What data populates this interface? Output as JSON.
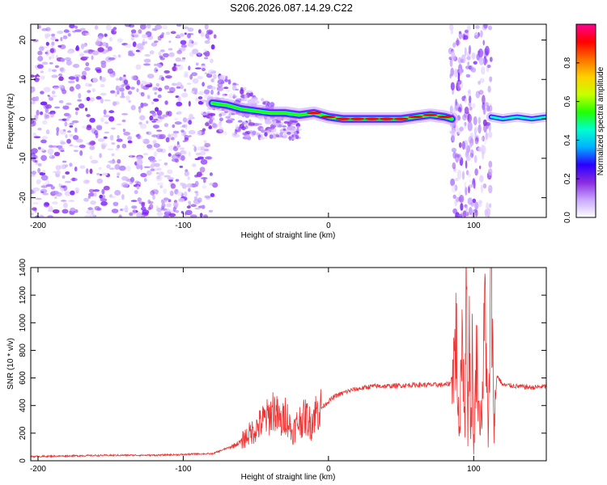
{
  "title": "S206.2026.087.14.29.C22",
  "chart_data": [
    {
      "type": "heatmap",
      "xlabel": "Height of straight line (km)",
      "ylabel": "Frequency (Hz)",
      "xlim": [
        -205,
        150
      ],
      "ylim": [
        -25,
        24
      ],
      "xticks": [
        -200,
        -100,
        0,
        100
      ],
      "yticks": [
        -20,
        -10,
        0,
        10,
        20
      ],
      "colorbar": {
        "label": "Normalized spectral amplitude",
        "range": [
          0,
          1
        ],
        "ticks": [
          "0.0",
          "0.2",
          "0.4",
          "0.6",
          "0.8"
        ],
        "colors": [
          "#ffffff",
          "#c9a8ff",
          "#8a2be2",
          "#2a00ff",
          "#00b0ff",
          "#00ffd0",
          "#22ff00",
          "#c8ff00",
          "#ffd000",
          "#ff7000",
          "#ff0000",
          "#ff0090"
        ]
      },
      "ridge": {
        "x": [
          -80,
          -70,
          -60,
          -50,
          -40,
          -30,
          -20,
          -10,
          0,
          10,
          20,
          30,
          40,
          50,
          60,
          70,
          80,
          85
        ],
        "frequency": [
          4,
          3.5,
          2.5,
          2,
          1.5,
          1.5,
          1,
          1.5,
          0.5,
          0,
          0,
          0,
          0,
          0,
          0.5,
          1,
          0.5,
          0
        ]
      }
    },
    {
      "type": "line",
      "xlabel": "Height of straight line (km)",
      "ylabel": "SNR (10 * v/v)",
      "xlim": [
        -205,
        150
      ],
      "ylim": [
        0,
        1400
      ],
      "xticks": [
        -200,
        -100,
        0,
        100
      ],
      "yticks": [
        0,
        200,
        400,
        600,
        800,
        1000,
        1200,
        1400
      ],
      "color": "#ee3333",
      "x": [
        -205,
        -180,
        -160,
        -140,
        -120,
        -100,
        -90,
        -80,
        -70,
        -65,
        -60,
        -55,
        -50,
        -45,
        -40,
        -38,
        -35,
        -32,
        -30,
        -28,
        -25,
        -22,
        -20,
        -18,
        -15,
        -12,
        -10,
        -5,
        0,
        5,
        10,
        15,
        20,
        25,
        30,
        40,
        50,
        60,
        70,
        80,
        84,
        86,
        88,
        90,
        92,
        94,
        95,
        96,
        97,
        98,
        99,
        100,
        102,
        104,
        106,
        108,
        110,
        112,
        114,
        116,
        120,
        130,
        140,
        150
      ],
      "y": [
        30,
        35,
        38,
        40,
        40,
        45,
        50,
        50,
        90,
        110,
        140,
        190,
        230,
        290,
        330,
        380,
        320,
        260,
        350,
        300,
        200,
        260,
        290,
        300,
        320,
        260,
        340,
        380,
        430,
        470,
        490,
        510,
        520,
        530,
        540,
        540,
        545,
        550,
        550,
        550,
        560,
        680,
        920,
        120,
        1000,
        300,
        1400,
        200,
        1100,
        150,
        750,
        50,
        820,
        300,
        400,
        1200,
        100,
        1360,
        250,
        620,
        550,
        540,
        530,
        540
      ]
    }
  ]
}
